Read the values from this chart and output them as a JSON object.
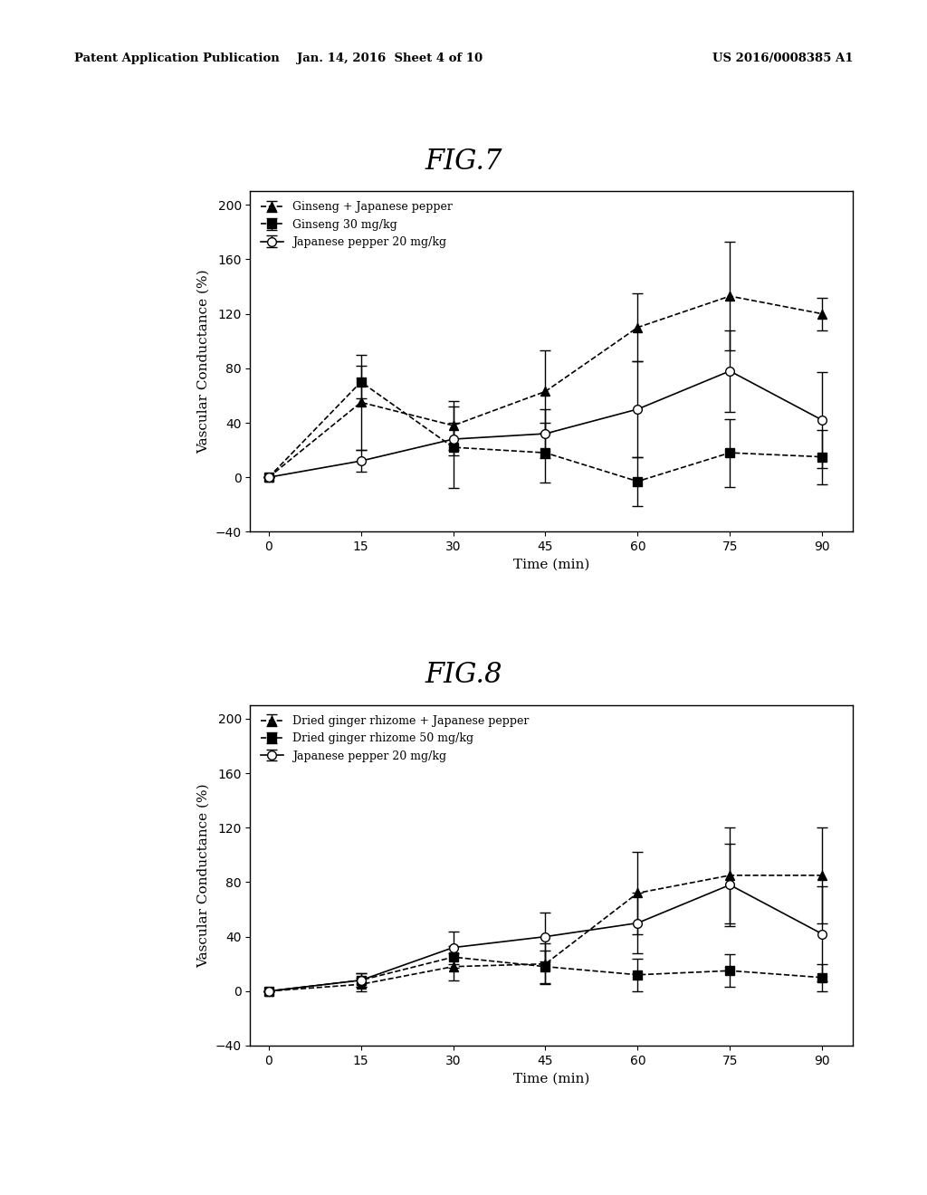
{
  "fig7": {
    "title": "FIG.7",
    "x": [
      0,
      15,
      30,
      45,
      60,
      75,
      90
    ],
    "series": [
      {
        "label": "Ginseng + Japanese pepper",
        "y": [
          0,
          55,
          38,
          63,
          110,
          133,
          120
        ],
        "yerr": [
          0,
          35,
          18,
          30,
          25,
          40,
          12
        ],
        "marker": "^",
        "linestyle": "--",
        "color": "#000000"
      },
      {
        "label": "Ginseng 30 mg/kg",
        "y": [
          0,
          70,
          22,
          18,
          -3,
          18,
          15
        ],
        "yerr": [
          0,
          12,
          30,
          22,
          18,
          25,
          20
        ],
        "marker": "s",
        "linestyle": "--",
        "color": "#000000"
      },
      {
        "label": "Japanese pepper 20 mg/kg",
        "y": [
          0,
          12,
          28,
          32,
          50,
          78,
          42
        ],
        "yerr": [
          0,
          8,
          12,
          18,
          35,
          30,
          35
        ],
        "marker": "o",
        "linestyle": "-",
        "color": "#000000"
      }
    ],
    "ylim": [
      -40,
      210
    ],
    "yticks": [
      -40,
      0,
      40,
      80,
      120,
      160,
      200
    ],
    "xlabel": "Time (min)",
    "ylabel": "Vascular Conductance (%)"
  },
  "fig8": {
    "title": "FIG.8",
    "x": [
      0,
      15,
      30,
      45,
      60,
      75,
      90
    ],
    "series": [
      {
        "label": "Dried ginger rhizome + Japanese pepper",
        "y": [
          0,
          5,
          18,
          20,
          72,
          85,
          85
        ],
        "yerr": [
          0,
          5,
          10,
          15,
          30,
          35,
          35
        ],
        "marker": "^",
        "linestyle": "--",
        "color": "#000000"
      },
      {
        "label": "Dried ginger rhizome 50 mg/kg",
        "y": [
          0,
          8,
          25,
          18,
          12,
          15,
          10
        ],
        "yerr": [
          0,
          5,
          8,
          12,
          12,
          12,
          10
        ],
        "marker": "s",
        "linestyle": "--",
        "color": "#000000"
      },
      {
        "label": "Japanese pepper 20 mg/kg",
        "y": [
          0,
          8,
          32,
          40,
          50,
          78,
          42
        ],
        "yerr": [
          0,
          5,
          12,
          18,
          22,
          30,
          35
        ],
        "marker": "o",
        "linestyle": "-",
        "color": "#000000"
      }
    ],
    "ylim": [
      -40,
      210
    ],
    "yticks": [
      -40,
      0,
      40,
      80,
      120,
      160,
      200
    ],
    "xlabel": "Time (min)",
    "ylabel": "Vascular Conductance (%)"
  },
  "header_left": "Patent Application Publication",
  "header_mid": "Jan. 14, 2016  Sheet 4 of 10",
  "header_right": "US 2016/0008385 A1",
  "background_color": "#ffffff"
}
